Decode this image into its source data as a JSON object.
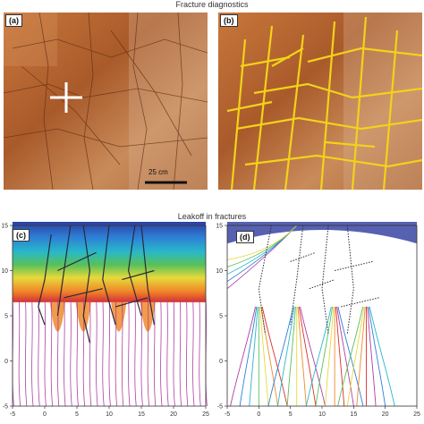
{
  "titles": {
    "top": "Fracture diagnostics",
    "bottom": "Leakoff in fractures"
  },
  "panels": {
    "a": {
      "label": "(a)",
      "scale_bar": "25 cm"
    },
    "b": {
      "label": "(b)"
    },
    "c": {
      "label": "(c)"
    },
    "d": {
      "label": "(d)"
    }
  },
  "colors": {
    "rock_base": "#b5652f",
    "rock_light": "#d9a070",
    "fracture_trace": "#f2d21a",
    "streamline": "#b03fa0",
    "fracture_line": "#2a2a3a"
  },
  "chart_data": [
    {
      "type": "heatmap",
      "panel": "c",
      "xlim": [
        -5,
        25
      ],
      "ylim": [
        -5,
        15
      ],
      "xticks": [
        "-5",
        "0",
        "5",
        "10",
        "15",
        "20",
        "25"
      ],
      "yticks": [
        "-5",
        "0",
        "5",
        "10",
        "15"
      ],
      "xlabel": "",
      "ylabel": "",
      "grid": false
    },
    {
      "type": "line",
      "panel": "d",
      "xlim": [
        -5,
        25
      ],
      "ylim": [
        -5,
        15
      ],
      "xticks": [
        "-5",
        "0",
        "5",
        "10",
        "15",
        "20",
        "25"
      ],
      "yticks": [
        "-5",
        "0",
        "5",
        "10",
        "15"
      ],
      "xlabel": "",
      "ylabel": "",
      "grid": false
    }
  ]
}
